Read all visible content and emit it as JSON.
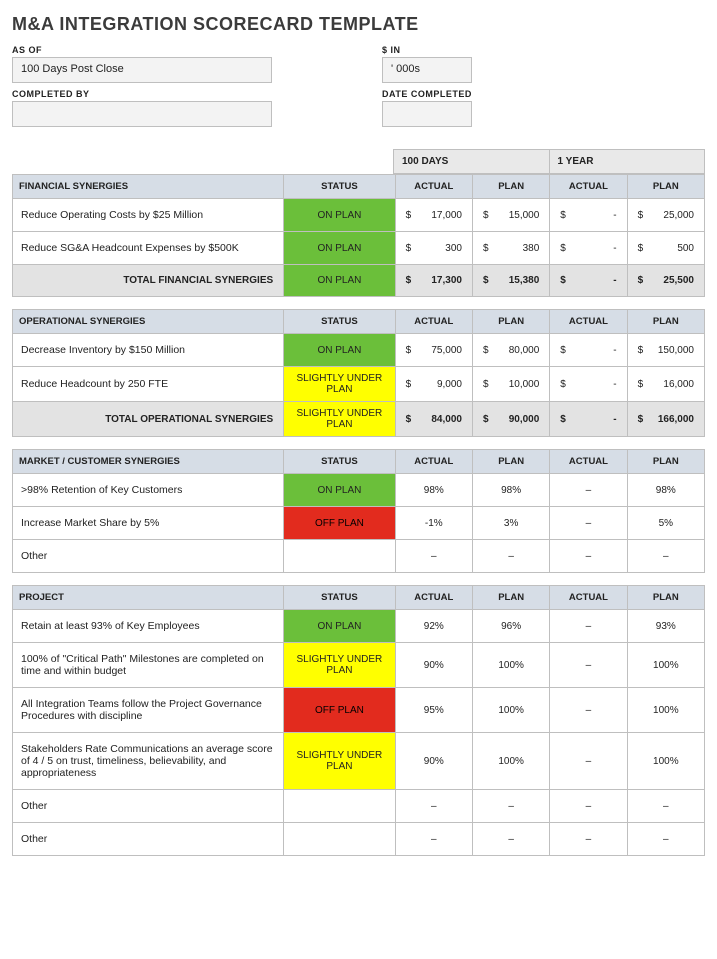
{
  "title": "M&A INTEGRATION SCORECARD TEMPLATE",
  "meta": {
    "as_of_label": "AS OF",
    "as_of_value": "100 Days Post Close",
    "s_in_label": "$ IN",
    "s_in_value": "' 000s",
    "completed_by_label": "COMPLETED BY",
    "completed_by_value": "",
    "date_completed_label": "DATE COMPLETED",
    "date_completed_value": ""
  },
  "periods": {
    "p1": "100 DAYS",
    "p2": "1 YEAR"
  },
  "colheads": {
    "status": "STATUS",
    "actual": "ACTUAL",
    "plan": "PLAN"
  },
  "status_colors": {
    "on_plan": "#6bbf3a",
    "slightly": "#ffff00",
    "off_plan": "#e22b1e",
    "header_bg": "#d6dde6",
    "total_bg": "#e3e3e3",
    "period_bg": "#e9e9e9",
    "border": "#bfbfbf"
  },
  "status_labels": {
    "on": "ON PLAN",
    "sl": "SLIGHTLY UNDER PLAN",
    "off": "OFF PLAN"
  },
  "sections": {
    "financial": {
      "header": "FINANCIAL SYNERGIES",
      "rows": [
        {
          "desc": "Reduce Operating Costs by $25 Million",
          "status": "on",
          "a100": "17,000",
          "p100": "15,000",
          "a1y": "-",
          "p1y": "25,000"
        },
        {
          "desc": "Reduce SG&A Headcount Expenses by $500K",
          "status": "on",
          "a100": "300",
          "p100": "380",
          "a1y": "-",
          "p1y": "500"
        }
      ],
      "total": {
        "label": "TOTAL FINANCIAL SYNERGIES",
        "status": "on",
        "a100": "17,300",
        "p100": "15,380",
        "a1y": "-",
        "p1y": "25,500"
      }
    },
    "operational": {
      "header": "OPERATIONAL SYNERGIES",
      "rows": [
        {
          "desc": "Decrease Inventory by $150 Million",
          "status": "on",
          "a100": "75,000",
          "p100": "80,000",
          "a1y": "-",
          "p1y": "150,000"
        },
        {
          "desc": "Reduce Headcount by 250 FTE",
          "status": "sl",
          "a100": "9,000",
          "p100": "10,000",
          "a1y": "-",
          "p1y": "16,000"
        }
      ],
      "total": {
        "label": "TOTAL OPERATIONAL SYNERGIES",
        "status": "sl",
        "a100": "84,000",
        "p100": "90,000",
        "a1y": "-",
        "p1y": "166,000"
      }
    },
    "market": {
      "header": "MARKET / CUSTOMER SYNERGIES",
      "rows": [
        {
          "desc": ">98% Retention of Key Customers",
          "status": "on",
          "a100": "98%",
          "p100": "98%",
          "a1y": "–",
          "p1y": "98%"
        },
        {
          "desc": "Increase Market Share by 5%",
          "status": "off",
          "a100": "-1%",
          "p100": "3%",
          "a1y": "–",
          "p1y": "5%"
        },
        {
          "desc": "Other",
          "status": "",
          "a100": "–",
          "p100": "–",
          "a1y": "–",
          "p1y": "–"
        }
      ]
    },
    "project": {
      "header": "PROJECT",
      "rows": [
        {
          "desc": "Retain at least 93% of Key Employees",
          "status": "on",
          "a100": "92%",
          "p100": "96%",
          "a1y": "–",
          "p1y": "93%"
        },
        {
          "desc": "100% of \"Critical Path\" Milestones are completed on time and within budget",
          "status": "sl",
          "a100": "90%",
          "p100": "100%",
          "a1y": "–",
          "p1y": "100%"
        },
        {
          "desc": "All Integration Teams follow the Project Governance Procedures with discipline",
          "status": "off",
          "a100": "95%",
          "p100": "100%",
          "a1y": "–",
          "p1y": "100%"
        },
        {
          "desc": "Stakeholders Rate Communications an average score of 4 / 5 on trust, timeliness, believability, and appropriateness",
          "status": "sl",
          "a100": "90%",
          "p100": "100%",
          "a1y": "–",
          "p1y": "100%"
        },
        {
          "desc": "Other",
          "status": "",
          "a100": "–",
          "p100": "–",
          "a1y": "–",
          "p1y": "–"
        },
        {
          "desc": "Other",
          "status": "",
          "a100": "–",
          "p100": "–",
          "a1y": "–",
          "p1y": "–"
        }
      ]
    }
  }
}
